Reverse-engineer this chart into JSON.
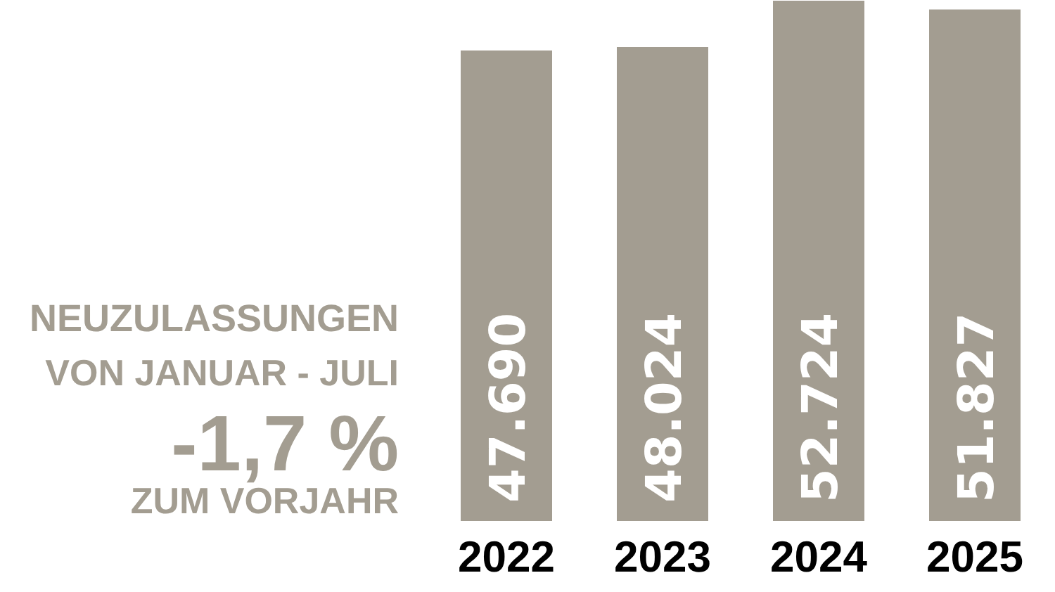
{
  "chart_data": {
    "type": "bar",
    "categories": [
      "2022",
      "2023",
      "2024",
      "2025"
    ],
    "values": [
      47690,
      48024,
      52724,
      51827
    ],
    "value_labels": [
      "47.690",
      "48.024",
      "52.724",
      "51.827"
    ],
    "color": "#a39d91",
    "tick_labels": "x",
    "annotations": [
      "NEUZULASSUNGEN",
      "VON JANUAR - JULI",
      "-1,7 %",
      "ZUM VORJAHR"
    ]
  }
}
